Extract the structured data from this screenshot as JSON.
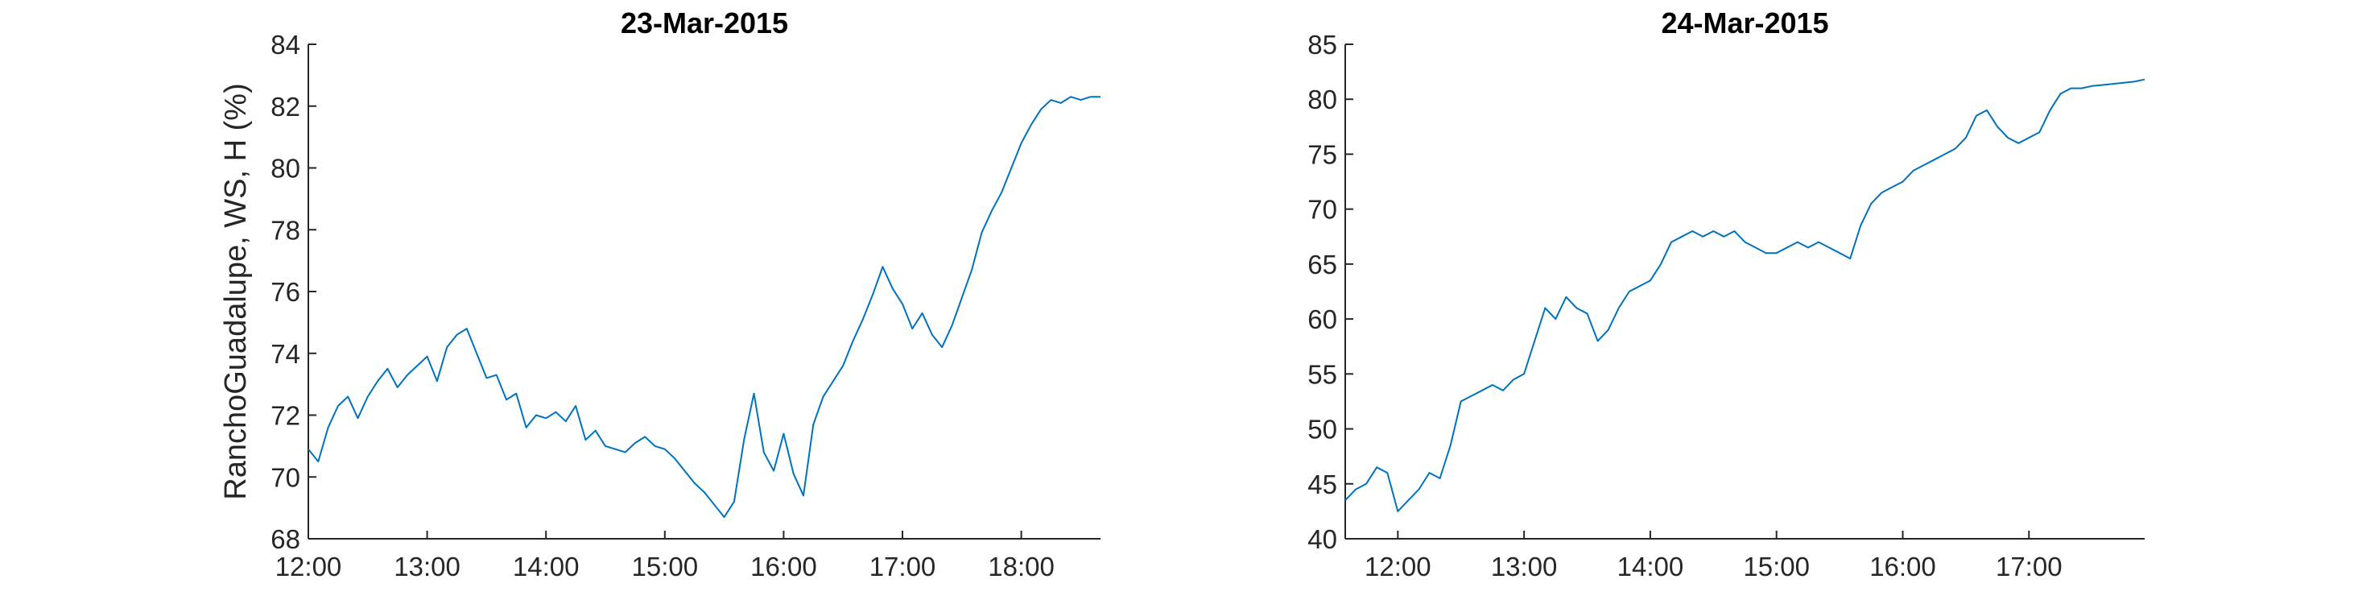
{
  "chart_data": [
    {
      "type": "line",
      "title": "23-Mar-2015",
      "xlabel": "",
      "ylabel": "RanchoGuadalupe, WS, H (%)",
      "x_unit": "time of day",
      "xlim": [
        "12:00",
        "18:40"
      ],
      "ylim": [
        68,
        84
      ],
      "xticks": [
        "12:00",
        "13:00",
        "14:00",
        "15:00",
        "16:00",
        "17:00",
        "18:00"
      ],
      "yticks": [
        68,
        70,
        72,
        74,
        76,
        78,
        80,
        82,
        84
      ],
      "grid": false,
      "series": [
        {
          "color": "#0072BD",
          "x": [
            "12:00",
            "12:05",
            "12:10",
            "12:15",
            "12:20",
            "12:25",
            "12:30",
            "12:35",
            "12:40",
            "12:45",
            "12:50",
            "12:55",
            "13:00",
            "13:05",
            "13:10",
            "13:15",
            "13:20",
            "13:25",
            "13:30",
            "13:35",
            "13:40",
            "13:45",
            "13:50",
            "13:55",
            "14:00",
            "14:05",
            "14:10",
            "14:15",
            "14:20",
            "14:25",
            "14:30",
            "14:35",
            "14:40",
            "14:45",
            "14:50",
            "14:55",
            "15:00",
            "15:05",
            "15:10",
            "15:15",
            "15:20",
            "15:25",
            "15:30",
            "15:35",
            "15:40",
            "15:45",
            "15:50",
            "15:55",
            "16:00",
            "16:05",
            "16:10",
            "16:15",
            "16:20",
            "16:25",
            "16:30",
            "16:35",
            "16:40",
            "16:45",
            "16:50",
            "16:55",
            "17:00",
            "17:05",
            "17:10",
            "17:15",
            "17:20",
            "17:25",
            "17:30",
            "17:35",
            "17:40",
            "17:45",
            "17:50",
            "17:55",
            "18:00",
            "18:05",
            "18:10",
            "18:15",
            "18:20",
            "18:25",
            "18:30",
            "18:35",
            "18:40"
          ],
          "y": [
            70.9,
            70.5,
            71.6,
            72.3,
            72.6,
            71.9,
            72.6,
            73.1,
            73.5,
            72.9,
            73.3,
            73.6,
            73.9,
            73.1,
            74.2,
            74.6,
            74.8,
            74.0,
            73.2,
            73.3,
            72.5,
            72.7,
            71.6,
            72.0,
            71.9,
            72.1,
            71.8,
            72.3,
            71.2,
            71.5,
            71.0,
            70.9,
            70.8,
            71.1,
            71.3,
            71.0,
            70.9,
            70.6,
            70.2,
            69.8,
            69.5,
            69.1,
            68.7,
            69.2,
            71.2,
            72.7,
            70.8,
            70.2,
            71.4,
            70.1,
            69.4,
            71.7,
            72.6,
            73.1,
            73.6,
            74.4,
            75.1,
            75.9,
            76.8,
            76.1,
            75.6,
            74.8,
            75.3,
            74.6,
            74.2,
            74.9,
            75.8,
            76.7,
            77.9,
            78.6,
            79.2,
            80.0,
            80.8,
            81.4,
            81.9,
            82.2,
            82.1,
            82.3,
            82.2,
            82.3,
            82.3
          ]
        }
      ]
    },
    {
      "type": "line",
      "title": "24-Mar-2015",
      "xlabel": "",
      "ylabel": "",
      "x_unit": "time of day",
      "xlim": [
        "11:35",
        "17:55"
      ],
      "ylim": [
        40,
        85
      ],
      "xticks": [
        "12:00",
        "13:00",
        "14:00",
        "15:00",
        "16:00",
        "17:00"
      ],
      "yticks": [
        40,
        45,
        50,
        55,
        60,
        65,
        70,
        75,
        80,
        85
      ],
      "grid": false,
      "series": [
        {
          "color": "#0072BD",
          "x": [
            "11:35",
            "11:40",
            "11:45",
            "11:50",
            "11:55",
            "12:00",
            "12:05",
            "12:10",
            "12:15",
            "12:20",
            "12:25",
            "12:30",
            "12:35",
            "12:40",
            "12:45",
            "12:50",
            "12:55",
            "13:00",
            "13:05",
            "13:10",
            "13:15",
            "13:20",
            "13:25",
            "13:30",
            "13:35",
            "13:40",
            "13:45",
            "13:50",
            "13:55",
            "14:00",
            "14:05",
            "14:10",
            "14:15",
            "14:20",
            "14:25",
            "14:30",
            "14:35",
            "14:40",
            "14:45",
            "14:50",
            "14:55",
            "15:00",
            "15:05",
            "15:10",
            "15:15",
            "15:20",
            "15:25",
            "15:30",
            "15:35",
            "15:40",
            "15:45",
            "15:50",
            "15:55",
            "16:00",
            "16:05",
            "16:10",
            "16:15",
            "16:20",
            "16:25",
            "16:30",
            "16:35",
            "16:40",
            "16:45",
            "16:50",
            "16:55",
            "17:00",
            "17:05",
            "17:10",
            "17:15",
            "17:20",
            "17:25",
            "17:30",
            "17:35",
            "17:40",
            "17:45",
            "17:50",
            "17:55"
          ],
          "y": [
            43.5,
            44.5,
            45.0,
            46.5,
            46.0,
            42.5,
            43.5,
            44.5,
            46.0,
            45.5,
            48.5,
            52.5,
            53.0,
            53.5,
            54.0,
            53.5,
            54.5,
            55.0,
            58.0,
            61.0,
            60.0,
            62.0,
            61.0,
            60.5,
            58.0,
            59.0,
            61.0,
            62.5,
            63.0,
            63.5,
            65.0,
            67.0,
            67.5,
            68.0,
            67.5,
            68.0,
            67.5,
            68.0,
            67.0,
            66.5,
            66.0,
            66.0,
            66.5,
            67.0,
            66.5,
            67.0,
            66.5,
            66.0,
            65.5,
            68.5,
            70.5,
            71.5,
            72.0,
            72.5,
            73.5,
            74.0,
            74.5,
            75.0,
            75.5,
            76.5,
            78.5,
            79.0,
            77.5,
            76.5,
            76.0,
            76.5,
            77.0,
            79.0,
            80.5,
            81.0,
            81.0,
            81.2,
            81.3,
            81.4,
            81.5,
            81.6,
            81.8
          ]
        }
      ]
    }
  ]
}
